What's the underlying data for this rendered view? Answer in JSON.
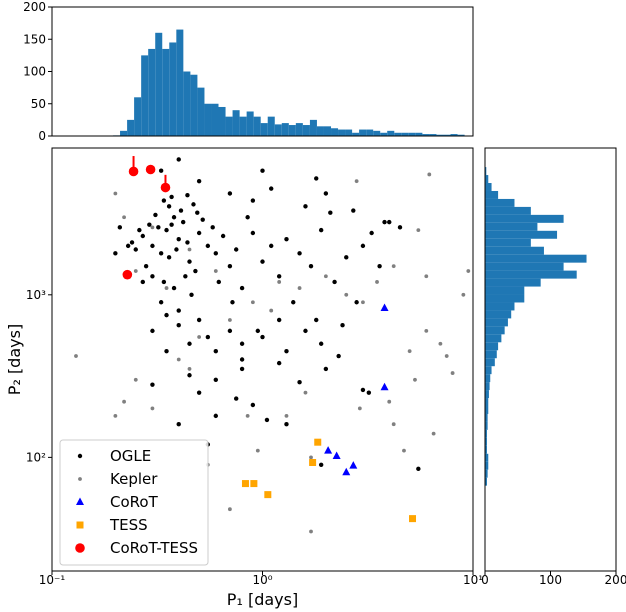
{
  "chart_data": [
    {
      "type": "scatter",
      "xlabel": "P₁ [days]",
      "ylabel": "P₂ [days]",
      "xscale": "log",
      "yscale": "log",
      "xlim": [
        0.1,
        10
      ],
      "ylim": [
        20,
        8000
      ],
      "xticks": [
        {
          "value": 0.1,
          "label": "10⁻¹"
        },
        {
          "value": 1,
          "label": "10⁰"
        },
        {
          "value": 10,
          "label": "10¹"
        }
      ],
      "yticks": [
        {
          "value": 100,
          "label": "10²"
        },
        {
          "value": 1000,
          "label": "10³"
        }
      ],
      "legend": "lower left",
      "series": [
        {
          "name": "OGLE",
          "color": "#000000",
          "marker": "circle",
          "x": [
            0.35,
            0.38,
            0.33,
            0.4,
            0.36,
            0.3,
            0.42,
            0.45,
            0.32,
            0.37,
            0.28,
            0.5,
            0.34,
            0.39,
            0.41,
            0.27,
            0.44,
            0.31,
            0.48,
            0.36,
            0.25,
            0.55,
            0.33,
            0.29,
            0.47,
            0.38,
            0.6,
            0.26,
            0.43,
            0.35,
            0.52,
            0.3,
            0.4,
            0.62,
            0.58,
            0.24,
            0.46,
            0.34,
            0.7,
            0.65,
            0.75,
            0.8,
            0.9,
            1.0,
            1.1,
            0.85,
            0.72,
            1.2,
            1.3,
            1.5,
            1.4,
            1.7,
            1.9,
            2.2,
            2.5,
            3.0,
            2.8,
            1.8,
            1.6,
            1.2,
            0.95,
            0.7,
            0.55,
            0.5,
            0.45,
            0.4,
            0.35,
            0.3,
            0.6,
            0.8,
            1.0,
            1.3,
            1.9,
            2.4,
            3.3,
            3.6,
            2.1,
            1.6,
            1.0,
            0.4,
            0.33,
            0.5,
            0.7,
            0.9,
            1.1,
            1.8,
            2.7,
            3.8,
            4.5,
            2.0,
            0.6,
            0.45,
            0.3,
            0.35,
            0.5,
            0.8,
            1.2,
            1.5,
            2.3,
            0.75,
            0.9,
            1.05,
            1.3,
            0.6,
            0.4,
            0.55,
            0.8,
            2.0,
            3.2,
            5.5,
            1.9,
            3.0,
            4.0,
            0.27,
            0.23,
            0.2,
            0.21,
            0.44,
            0.49,
            0.37
          ],
          "values": [
            2500,
            3000,
            1800,
            2200,
            3500,
            2000,
            2800,
            1600,
            2600,
            4000,
            1500,
            2400,
            1200,
            1900,
            3300,
            2300,
            2100,
            3100,
            1400,
            1700,
            1900,
            2000,
            900,
            2700,
            3600,
            1100,
            1800,
            2500,
            1300,
            4500,
            2900,
            1300,
            800,
            1200,
            2600,
            2100,
            1000,
            3800,
            1500,
            2300,
            1900,
            1100,
            2400,
            1600,
            2000,
            3000,
            900,
            1300,
            2200,
            1800,
            900,
            1500,
            2500,
            1200,
            1700,
            2000,
            900,
            700,
            600,
            700,
            600,
            600,
            550,
            700,
            500,
            650,
            750,
            600,
            450,
            500,
            550,
            450,
            500,
            650,
            2400,
            1500,
            3200,
            3500,
            5800,
            6800,
            5800,
            5000,
            4200,
            3800,
            4500,
            5200,
            3300,
            2800,
            2600,
            4200,
            300,
            320,
            280,
            450,
            250,
            400,
            380,
            290,
            420,
            230,
            210,
            170,
            160,
            180,
            160,
            120,
            350,
            350,
            250,
            85,
            90,
            260,
            2800,
            1200,
            2000,
            1800,
            2600,
            4100,
            3200,
            2700
          ]
        },
        {
          "name": "Kepler",
          "color": "#808080",
          "marker": "circle-small",
          "x": [
            0.2,
            0.13,
            0.22,
            0.25,
            0.35,
            0.3,
            0.45,
            0.6,
            0.9,
            1.2,
            0.5,
            0.4,
            0.25,
            0.22,
            0.2,
            0.3,
            0.45,
            0.7,
            1.1,
            1.5,
            2.0,
            2.5,
            3.0,
            3.5,
            4.2,
            5.5,
            6.0,
            7.0,
            8.0,
            9.0,
            9.5,
            7.5,
            6.0,
            5.0,
            4.2,
            4.7,
            5.3,
            6.5,
            4.0,
            2.9,
            1.6,
            1.3,
            0.95,
            0.7,
            0.55,
            1.7,
            1.7,
            0.85,
            2.8,
            6.2
          ],
          "values": [
            4200,
            420,
            3000,
            1400,
            1100,
            2600,
            1900,
            1400,
            900,
            1200,
            550,
            400,
            300,
            220,
            180,
            200,
            350,
            700,
            800,
            1100,
            1300,
            1000,
            900,
            1200,
            1500,
            2500,
            1300,
            500,
            330,
            1000,
            1400,
            420,
            600,
            450,
            160,
            110,
            300,
            140,
            220,
            200,
            250,
            180,
            110,
            48,
            90,
            35,
            100,
            180,
            5000,
            5500
          ]
        },
        {
          "name": "CoRoT",
          "color": "#0000ff",
          "marker": "triangle",
          "x": [
            3.8,
            3.8,
            2.05,
            2.25,
            2.5,
            2.7
          ],
          "values": [
            830,
            270,
            110,
            102,
            81,
            89
          ]
        },
        {
          "name": "TESS",
          "color": "#ffa500",
          "marker": "square",
          "x": [
            1.83,
            1.73,
            0.83,
            0.91,
            1.06,
            5.16
          ],
          "values": [
            124,
            93,
            69,
            69,
            59,
            42
          ]
        },
        {
          "name": "CoRoT-TESS",
          "color": "#ff0000",
          "marker": "circle-large",
          "x": [
            0.244,
            0.294,
            0.346,
            0.228
          ],
          "values": [
            5740,
            5900,
            4570,
            1330
          ],
          "errors": [
            1400,
            null,
            900,
            null
          ]
        }
      ]
    },
    {
      "type": "histogram",
      "color": "#1f77b4",
      "xscale": "log",
      "xlim": [
        0.1,
        10
      ],
      "ylim": [
        0,
        200
      ],
      "yticks": [
        0,
        50,
        100,
        150,
        200
      ],
      "bins": [
        0.195,
        0.2105,
        0.2274,
        0.2455,
        0.2652,
        0.2864,
        0.3093,
        0.334,
        0.3607,
        0.3896,
        0.4207,
        0.4544,
        0.4907,
        0.53,
        0.5723,
        0.618,
        0.6675,
        0.7208,
        0.7785,
        0.8407,
        0.9078,
        0.9804,
        1.0588,
        1.1434,
        1.2348,
        1.3335,
        1.44,
        1.555,
        1.68,
        1.814,
        1.959,
        2.116,
        2.285,
        2.467,
        2.665,
        2.877,
        3.107,
        3.356,
        3.624,
        3.913,
        4.227,
        4.564,
        4.929,
        5.323,
        5.749,
        6.209,
        6.705,
        7.241,
        7.82,
        8.445,
        9.12
      ],
      "values": [
        1,
        8,
        25,
        60,
        125,
        135,
        160,
        135,
        145,
        165,
        100,
        95,
        75,
        50,
        50,
        45,
        30,
        40,
        30,
        38,
        30,
        20,
        30,
        18,
        20,
        17,
        20,
        17,
        25,
        15,
        15,
        12,
        10,
        10,
        5,
        10,
        10,
        8,
        5,
        8,
        5,
        5,
        5,
        5,
        3,
        3,
        2,
        2,
        3,
        2
      ]
    },
    {
      "type": "histogram",
      "orientation": "horizontal",
      "color": "#1f77b4",
      "yscale": "log",
      "ylim": [
        20,
        8000
      ],
      "xlim": [
        0,
        200
      ],
      "xticks": [
        0,
        100,
        200
      ],
      "bins": [
        67.0,
        75.0,
        84.0,
        94.0,
        105.2,
        117.8,
        131.9,
        147.6,
        165.2,
        184.9,
        207.0,
        231.7,
        259.4,
        290.4,
        325.0,
        363.8,
        407.3,
        455.9,
        510.4,
        571.3,
        639.5,
        715.9,
        801.4,
        897.1,
        1004,
        1124,
        1258,
        1409,
        1577,
        1765,
        1976,
        2212,
        2476,
        2772,
        3103,
        3473,
        3888,
        4352,
        4872,
        5454,
        6105
      ],
      "values": [
        3,
        4,
        5,
        5,
        3,
        3,
        3,
        4,
        4,
        5,
        5,
        6,
        7,
        8,
        10,
        15,
        18,
        20,
        25,
        30,
        35,
        40,
        45,
        60,
        60,
        85,
        140,
        120,
        155,
        90,
        70,
        110,
        80,
        120,
        70,
        45,
        20,
        10,
        5,
        2
      ]
    }
  ]
}
